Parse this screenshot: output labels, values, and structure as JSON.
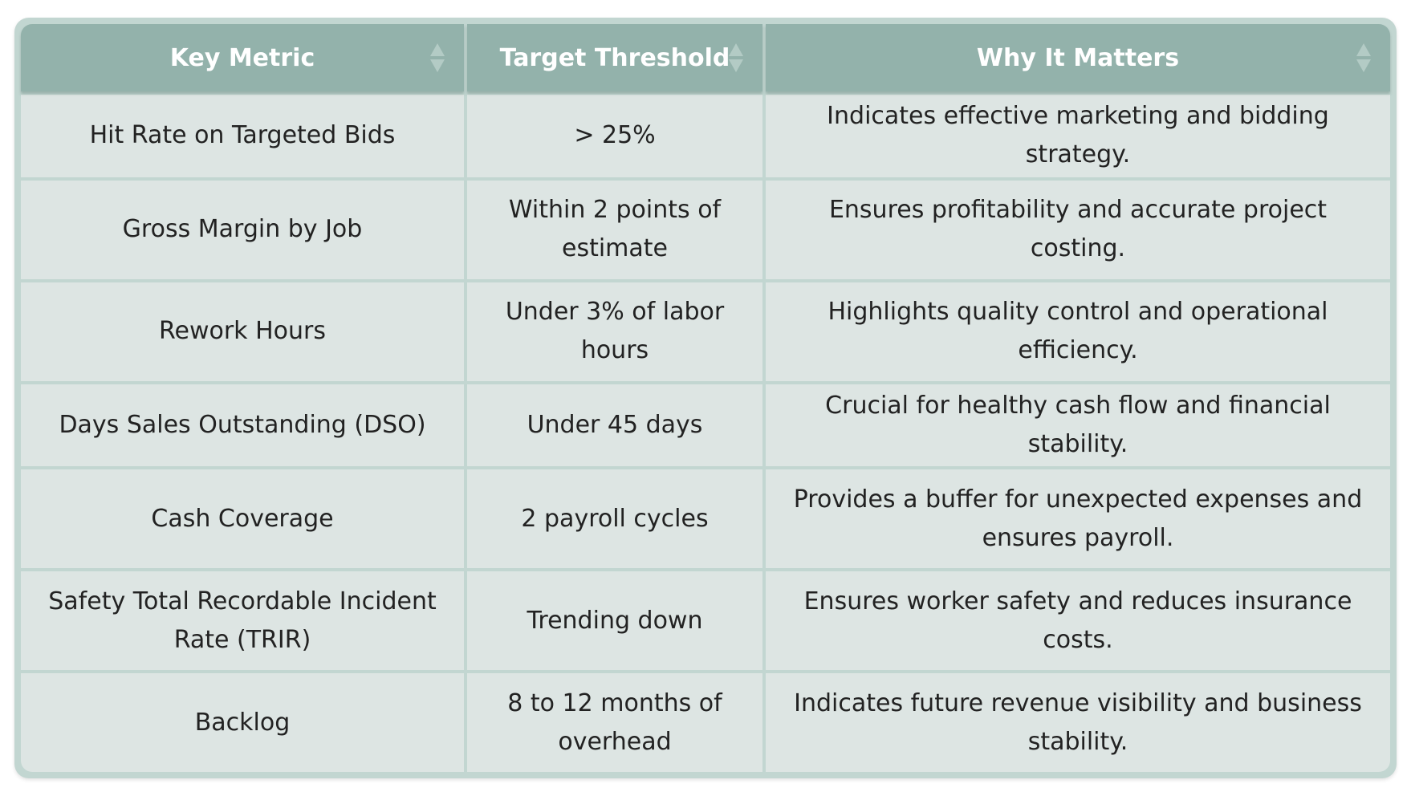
{
  "table": {
    "headers": [
      {
        "label": "Key Metric"
      },
      {
        "label": "Target Threshold"
      },
      {
        "label": "Why It Matters"
      }
    ],
    "rows": [
      {
        "metric": "Hit Rate on Targeted Bids",
        "threshold": "> 25%",
        "why": "Indicates effective marketing and bidding strategy."
      },
      {
        "metric": "Gross Margin by Job",
        "threshold": "Within 2 points of estimate",
        "why": "Ensures profitability and accurate project costing."
      },
      {
        "metric": "Rework Hours",
        "threshold": "Under 3% of labor hours",
        "why": "Highlights quality control and operational efficiency."
      },
      {
        "metric": "Days Sales Outstanding (DSO)",
        "threshold": "Under 45 days",
        "why": "Crucial for healthy cash flow and financial stability."
      },
      {
        "metric": "Cash Coverage",
        "threshold": "2 payroll cycles",
        "why": "Provides a buffer for unexpected expenses and ensures payroll."
      },
      {
        "metric": "Safety Total Recordable Incident Rate (TRIR)",
        "threshold": "Trending down",
        "why": "Ensures worker safety and reduces insurance costs."
      },
      {
        "metric": "Backlog",
        "threshold": "8 to 12 months of overhead",
        "why": "Indicates future revenue visibility and business stability."
      }
    ],
    "sort_icon": "sort-arrows-icon",
    "colors": {
      "header_bg": "#93b2ab",
      "cell_bg": "#dde5e3",
      "grid": "#c2d6d1"
    }
  }
}
